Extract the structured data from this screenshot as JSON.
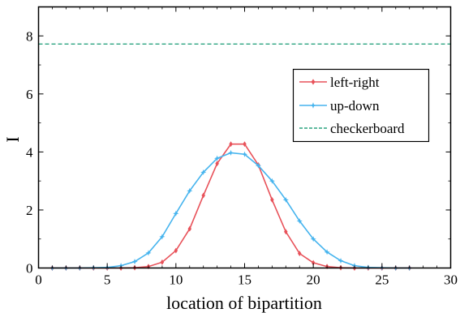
{
  "chart_data": {
    "type": "line",
    "title": "",
    "xlabel": "location of bipartition",
    "ylabel": "I",
    "xlim": [
      0,
      30
    ],
    "ylim": [
      0,
      9
    ],
    "xticks": [
      0,
      5,
      10,
      15,
      20,
      25,
      30
    ],
    "yticks": [
      0,
      2,
      4,
      6,
      8
    ],
    "grid": false,
    "legend_position": "center-right",
    "series": [
      {
        "name": "left-right",
        "color": "#e8525a",
        "marker": "diamond",
        "style": "solid",
        "x": [
          1,
          2,
          3,
          4,
          5,
          6,
          7,
          8,
          9,
          10,
          11,
          12,
          13,
          14,
          15,
          16,
          17,
          18,
          19,
          20,
          21,
          22,
          23,
          24,
          25,
          26,
          27
        ],
        "y": [
          0,
          0,
          0,
          0,
          0,
          0,
          0.01,
          0.05,
          0.2,
          0.6,
          1.35,
          2.5,
          3.6,
          4.27,
          4.27,
          3.55,
          2.35,
          1.25,
          0.5,
          0.18,
          0.05,
          0.01,
          0,
          0,
          0,
          0,
          0
        ]
      },
      {
        "name": "up-down",
        "color": "#46b4ee",
        "marker": "star",
        "style": "solid",
        "x": [
          1,
          2,
          3,
          4,
          5,
          6,
          7,
          8,
          9,
          10,
          11,
          12,
          13,
          14,
          15,
          16,
          17,
          18,
          19,
          20,
          21,
          22,
          23,
          24,
          25,
          26,
          27
        ],
        "y": [
          0,
          0,
          0,
          0.01,
          0.02,
          0.08,
          0.22,
          0.52,
          1.08,
          1.88,
          2.66,
          3.3,
          3.78,
          3.97,
          3.92,
          3.53,
          3.0,
          2.35,
          1.62,
          1.0,
          0.55,
          0.25,
          0.08,
          0.02,
          0.01,
          0,
          0
        ]
      },
      {
        "name": "checkerboard",
        "color": "#2aa37f",
        "style": "dashed",
        "value": 7.72
      }
    ]
  }
}
